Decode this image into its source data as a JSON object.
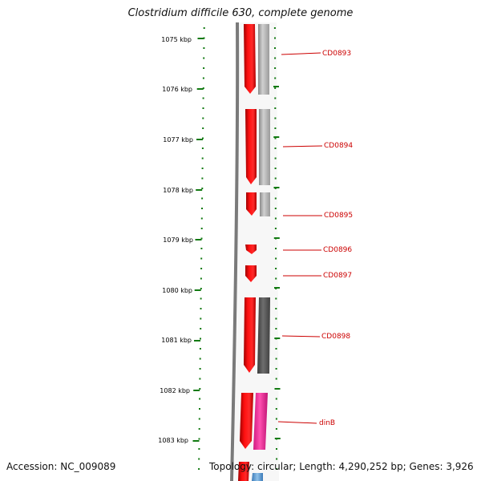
{
  "title": "Clostridium difficile 630, complete genome",
  "footer": {
    "accession_label": "Accession:",
    "accession": "NC_009089",
    "topology_label": "Topology:",
    "topology": "circular",
    "length_label": "Length:",
    "length": "4,290,252 bp",
    "genes_label": "Genes:",
    "genes": "3,926"
  },
  "ticks": [
    "1075 kbp",
    "1076 kbp",
    "1077 kbp",
    "1078 kbp",
    "1079 kbp",
    "1080 kbp",
    "1081 kbp",
    "1082 kbp",
    "1083 kbp"
  ],
  "genes": [
    {
      "label": "CD0893",
      "color": "#cc0000"
    },
    {
      "label": "CD0894",
      "color": "#cc0000"
    },
    {
      "label": "CD0895",
      "color": "#cc0000"
    },
    {
      "label": "CD0896",
      "color": "#cc0000"
    },
    {
      "label": "CD0897",
      "color": "#cc0000"
    },
    {
      "label": "CD0898",
      "color": "#cc0000"
    },
    {
      "label": "dinB",
      "color": "#cc0000"
    }
  ],
  "colors": {
    "cds_strand": "#ff0000",
    "feature_grey": "#b4b4b4",
    "feature_dark": "#555555",
    "feature_pink": "#ff3aa0",
    "tick_green": "#127a12",
    "backbone": "#7a7a7a"
  }
}
